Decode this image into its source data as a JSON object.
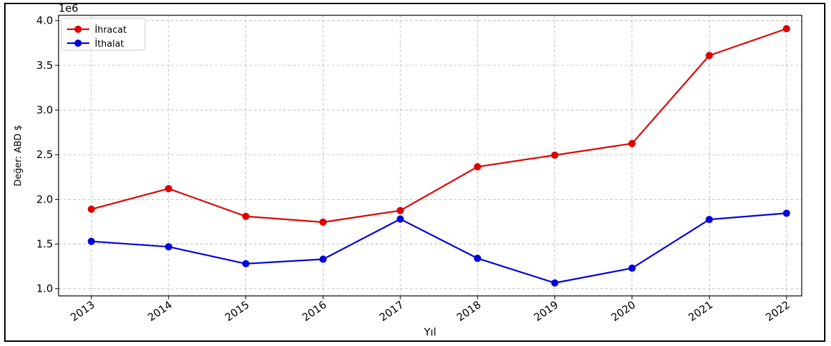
{
  "chart_data": {
    "type": "line",
    "title": "",
    "xlabel": "Yıl",
    "ylabel": "Değer: ABD $",
    "y_offset_text": "1e6",
    "x": [
      "2013",
      "2014",
      "2015",
      "2016",
      "2017",
      "2018",
      "2019",
      "2020",
      "2021",
      "2022"
    ],
    "yticks": [
      "1.0",
      "1.5",
      "2.0",
      "2.5",
      "3.0",
      "3.5",
      "4.0"
    ],
    "ylim": [
      0.92,
      4.06
    ],
    "grid": true,
    "legend_position": "top-left",
    "series": [
      {
        "name": "İhracat",
        "color": "#dd0000",
        "values": [
          1.89,
          2.12,
          1.81,
          1.745,
          1.875,
          2.365,
          2.495,
          2.625,
          3.61,
          3.91
        ]
      },
      {
        "name": "İthalat",
        "color": "#0000dd",
        "values": [
          1.53,
          1.47,
          1.28,
          1.33,
          1.78,
          1.34,
          1.065,
          1.23,
          1.775,
          1.845
        ]
      }
    ]
  }
}
